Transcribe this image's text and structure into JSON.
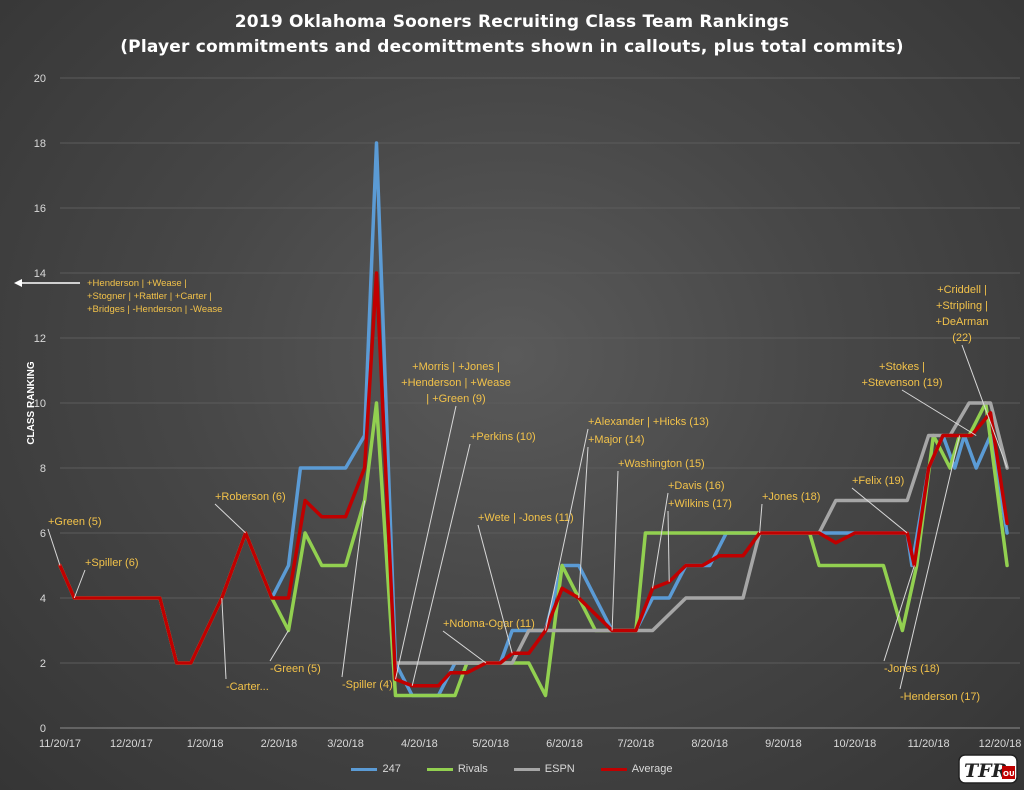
{
  "title_line1": "2019 Oklahoma Sooners Recruiting Class Team Rankings",
  "title_line2": "(Player commitments and decomittments shown in callouts, plus total commits)",
  "logo_text": "TFR OU",
  "chart_data": {
    "type": "line",
    "ylabel": "CLASS RANKING",
    "xlabel": "",
    "ylim": [
      0,
      20
    ],
    "yticks": [
      0,
      2,
      4,
      6,
      8,
      10,
      12,
      14,
      16,
      18,
      20
    ],
    "x_tick_labels": [
      "11/20/17",
      "12/20/17",
      "1/20/18",
      "2/20/18",
      "3/20/18",
      "4/20/18",
      "5/20/18",
      "6/20/18",
      "7/20/18",
      "8/20/18",
      "9/20/18",
      "10/20/18",
      "11/20/18",
      "12/20/18"
    ],
    "grid": true,
    "legend_position": "bottom",
    "series": [
      {
        "name": "247",
        "color": "#5b9bd5",
        "points": [
          [
            "11/20/17",
            5
          ],
          [
            "11/26/17",
            4
          ],
          [
            "12/20/17",
            4
          ],
          [
            "1/1/18",
            4
          ],
          [
            "1/8/18",
            2
          ],
          [
            "1/14/18",
            2
          ],
          [
            "1/27/18",
            4
          ],
          [
            "2/6/18",
            6
          ],
          [
            "2/17/18",
            4
          ],
          [
            "2/24/18",
            5
          ],
          [
            "3/1/18",
            8
          ],
          [
            "3/20/18",
            8
          ],
          [
            "3/28/18",
            9
          ],
          [
            "4/2/18",
            18
          ],
          [
            "4/10/18",
            2
          ],
          [
            "4/17/18",
            1
          ],
          [
            "4/28/18",
            1
          ],
          [
            "5/5/18",
            2
          ],
          [
            "5/24/18",
            2
          ],
          [
            "5/29/18",
            3
          ],
          [
            "6/6/18",
            3
          ],
          [
            "6/12/18",
            3
          ],
          [
            "6/19/18",
            5
          ],
          [
            "6/26/18",
            5
          ],
          [
            "7/3/18",
            4
          ],
          [
            "7/10/18",
            3
          ],
          [
            "7/20/18",
            3
          ],
          [
            "7/27/18",
            4
          ],
          [
            "8/3/18",
            4
          ],
          [
            "8/10/18",
            5
          ],
          [
            "8/20/18",
            5
          ],
          [
            "8/27/18",
            6
          ],
          [
            "9/10/18",
            6
          ],
          [
            "9/20/18",
            6
          ],
          [
            "10/1/18",
            6
          ],
          [
            "10/10/18",
            6
          ],
          [
            "10/20/18",
            6
          ],
          [
            "11/11/18",
            6
          ],
          [
            "11/13/18",
            5
          ],
          [
            "11/20/18",
            8
          ],
          [
            "11/26/18",
            9
          ],
          [
            "12/1/18",
            8
          ],
          [
            "12/5/18",
            9
          ],
          [
            "12/10/18",
            8
          ],
          [
            "12/16/18",
            9
          ],
          [
            "12/23/18",
            6
          ]
        ]
      },
      {
        "name": "Rivals",
        "color": "#92d050",
        "points": [
          [
            "11/20/17",
            5
          ],
          [
            "11/26/17",
            4
          ],
          [
            "12/20/17",
            4
          ],
          [
            "1/1/18",
            4
          ],
          [
            "1/8/18",
            2
          ],
          [
            "1/14/18",
            2
          ],
          [
            "1/27/18",
            4
          ],
          [
            "2/6/18",
            6
          ],
          [
            "2/17/18",
            4
          ],
          [
            "2/24/18",
            3
          ],
          [
            "3/3/18",
            6
          ],
          [
            "3/10/18",
            5
          ],
          [
            "3/20/18",
            5
          ],
          [
            "3/28/18",
            7
          ],
          [
            "4/2/18",
            10
          ],
          [
            "4/10/18",
            1
          ],
          [
            "4/17/18",
            1
          ],
          [
            "4/28/18",
            1
          ],
          [
            "5/5/18",
            1
          ],
          [
            "5/10/18",
            2
          ],
          [
            "5/24/18",
            2
          ],
          [
            "5/29/18",
            2
          ],
          [
            "6/5/18",
            2
          ],
          [
            "6/12/18",
            1
          ],
          [
            "6/19/18",
            5
          ],
          [
            "6/26/18",
            4
          ],
          [
            "7/3/18",
            3
          ],
          [
            "7/10/18",
            3
          ],
          [
            "7/20/18",
            3
          ],
          [
            "7/24/18",
            6
          ],
          [
            "8/20/18",
            6
          ],
          [
            "9/10/18",
            6
          ],
          [
            "9/20/18",
            6
          ],
          [
            "10/1/18",
            6
          ],
          [
            "10/5/18",
            5
          ],
          [
            "10/20/18",
            5
          ],
          [
            "11/1/18",
            5
          ],
          [
            "11/9/18",
            3
          ],
          [
            "11/15/18",
            5
          ],
          [
            "11/22/18",
            9
          ],
          [
            "11/29/18",
            8
          ],
          [
            "12/3/18",
            9
          ],
          [
            "12/7/18",
            9
          ],
          [
            "12/14/18",
            10
          ],
          [
            "12/23/18",
            5
          ]
        ]
      },
      {
        "name": "ESPN",
        "color": "#a6a6a6",
        "points": [
          [
            "4/10/18",
            2
          ],
          [
            "4/17/18",
            2
          ],
          [
            "4/28/18",
            2
          ],
          [
            "5/5/18",
            2
          ],
          [
            "5/24/18",
            2
          ],
          [
            "5/29/18",
            2
          ],
          [
            "6/5/18",
            3
          ],
          [
            "6/12/18",
            3
          ],
          [
            "6/26/18",
            3
          ],
          [
            "7/10/18",
            3
          ],
          [
            "7/20/18",
            3
          ],
          [
            "7/27/18",
            3
          ],
          [
            "8/10/18",
            4
          ],
          [
            "8/27/18",
            4
          ],
          [
            "9/3/18",
            4
          ],
          [
            "9/10/18",
            6
          ],
          [
            "9/20/18",
            6
          ],
          [
            "10/5/18",
            6
          ],
          [
            "10/12/18",
            7
          ],
          [
            "10/20/18",
            7
          ],
          [
            "11/1/18",
            7
          ],
          [
            "11/11/18",
            7
          ],
          [
            "11/20/18",
            9
          ],
          [
            "11/29/18",
            9
          ],
          [
            "12/7/18",
            10
          ],
          [
            "12/16/18",
            10
          ],
          [
            "12/23/18",
            8
          ]
        ]
      },
      {
        "name": "Average",
        "color": "#c00000",
        "points": [
          [
            "11/20/17",
            5
          ],
          [
            "11/26/17",
            4
          ],
          [
            "12/20/17",
            4
          ],
          [
            "1/1/18",
            4
          ],
          [
            "1/8/18",
            2
          ],
          [
            "1/14/18",
            2
          ],
          [
            "1/27/18",
            4
          ],
          [
            "2/6/18",
            6
          ],
          [
            "2/17/18",
            4
          ],
          [
            "2/24/18",
            4
          ],
          [
            "3/3/18",
            7
          ],
          [
            "3/10/18",
            6.5
          ],
          [
            "3/20/18",
            6.5
          ],
          [
            "3/28/18",
            8
          ],
          [
            "4/2/18",
            14
          ],
          [
            "4/10/18",
            1.5
          ],
          [
            "4/17/18",
            1.3
          ],
          [
            "4/28/18",
            1.3
          ],
          [
            "5/3/18",
            1.7
          ],
          [
            "5/10/18",
            1.7
          ],
          [
            "5/18/18",
            2
          ],
          [
            "5/24/18",
            2
          ],
          [
            "5/29/18",
            2.3
          ],
          [
            "6/5/18",
            2.3
          ],
          [
            "6/12/18",
            3
          ],
          [
            "6/19/18",
            4.3
          ],
          [
            "6/26/18",
            4
          ],
          [
            "7/3/18",
            3.5
          ],
          [
            "7/10/18",
            3
          ],
          [
            "7/20/18",
            3
          ],
          [
            "7/27/18",
            4.3
          ],
          [
            "8/3/18",
            4.5
          ],
          [
            "8/10/18",
            5
          ],
          [
            "8/17/18",
            5
          ],
          [
            "8/24/18",
            5.3
          ],
          [
            "9/3/18",
            5.3
          ],
          [
            "9/10/18",
            6
          ],
          [
            "9/20/18",
            6
          ],
          [
            "10/5/18",
            6
          ],
          [
            "10/12/18",
            5.7
          ],
          [
            "10/20/18",
            6
          ],
          [
            "11/1/18",
            6
          ],
          [
            "11/11/18",
            6
          ],
          [
            "11/14/18",
            5
          ],
          [
            "11/20/18",
            8
          ],
          [
            "11/26/18",
            9
          ],
          [
            "12/3/18",
            9
          ],
          [
            "12/8/18",
            9
          ],
          [
            "12/16/18",
            9.7
          ],
          [
            "12/23/18",
            6.3
          ]
        ]
      }
    ],
    "annotations": [
      {
        "lines": [
          "+Green (5)"
        ],
        "date": "11/20/17",
        "value": 5
      },
      {
        "lines": [
          "+Spiller (6)"
        ],
        "date": "11/26/17",
        "value": 4
      },
      {
        "lines": [
          "-Carter..."
        ],
        "date": "1/27/18",
        "value": 4
      },
      {
        "lines": [
          "+Roberson (6)"
        ],
        "date": "2/6/18",
        "value": 6
      },
      {
        "lines": [
          "-Green (5)"
        ],
        "date": "2/24/18",
        "value": 3
      },
      {
        "lines": [
          "-Spiller (4)"
        ],
        "date": "3/28/18",
        "value": 7
      },
      {
        "lines": [
          "+Henderson | +Wease |",
          "+Stogner | +Rattler | +Carter |",
          "+Bridges | -Henderson | -Wease"
        ],
        "offscale": true
      },
      {
        "lines": [
          "+Morris | +Jones |",
          "+Henderson | +Wease",
          "| +Green (9)"
        ],
        "date": "4/10/18",
        "value": 1.5
      },
      {
        "lines": [
          "+Perkins (10)"
        ],
        "date": "4/17/18",
        "value": 1.3
      },
      {
        "lines": [
          "+Ndoma-Ogar (11)"
        ],
        "date": "5/18/18",
        "value": 2
      },
      {
        "lines": [
          "+Wete | -Jones (11)"
        ],
        "date": "5/29/18",
        "value": 2.3
      },
      {
        "lines": [
          "+Alexander | +Hicks (13)"
        ],
        "date": "6/12/18",
        "value": 3
      },
      {
        "lines": [
          "+Major (14)"
        ],
        "date": "6/26/18",
        "value": 4
      },
      {
        "lines": [
          "+Washington (15)"
        ],
        "date": "7/10/18",
        "value": 3
      },
      {
        "lines": [
          "+Davis (16)"
        ],
        "date": "7/27/18",
        "value": 4.3
      },
      {
        "lines": [
          "+Wilkins (17)"
        ],
        "date": "8/3/18",
        "value": 4.5
      },
      {
        "lines": [
          "+Jones (18)"
        ],
        "date": "9/10/18",
        "value": 6
      },
      {
        "lines": [
          "+Felix (19)"
        ],
        "date": "11/11/18",
        "value": 6
      },
      {
        "lines": [
          "-Jones (18)"
        ],
        "date": "11/14/18",
        "value": 5
      },
      {
        "lines": [
          "+Stokes |",
          "+Stevenson (19)"
        ],
        "date": "12/10/18",
        "value": 9
      },
      {
        "lines": [
          "-Henderson (17)"
        ],
        "date": "12/3/18",
        "value": 9
      },
      {
        "lines": [
          "+Criddell |",
          "+Stripling |",
          "+DeArman",
          "(22)"
        ],
        "date": "12/23/18",
        "value": 8
      }
    ]
  }
}
